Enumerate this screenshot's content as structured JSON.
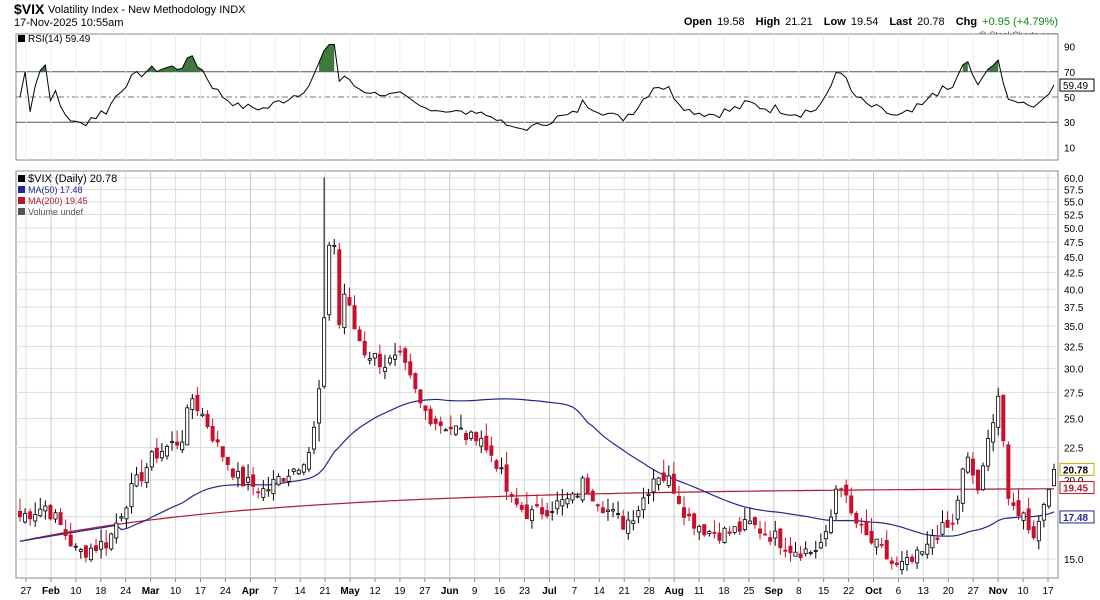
{
  "header": {
    "symbol": "$VIX",
    "name": "Volatility Index - New Methodology  INDX",
    "datetime": "17-Nov-2025 10:55am",
    "open_label": "Open",
    "open": "19.58",
    "high_label": "High",
    "high": "21.21",
    "low_label": "Low",
    "low": "19.54",
    "last_label": "Last",
    "last": "20.78",
    "chg_label": "Chg",
    "chg": "+0.95 (+4.79%)",
    "credit": "@ StockCharts.com"
  },
  "rsi_panel": {
    "legend": "RSI(14) 59.49",
    "ticks": [
      "90",
      "70",
      "50",
      "30",
      "10"
    ],
    "current": "59.49"
  },
  "price_panel": {
    "legend": [
      {
        "text": "$VIX (Daily) 20.78",
        "color": "#000000"
      },
      {
        "text": "MA(50) 17.48",
        "color": "#1f2a8c"
      },
      {
        "text": "MA(200) 19.45",
        "color": "#b0182b"
      },
      {
        "text": "Volume undef",
        "color": "#555555"
      }
    ],
    "ticks": [
      "60.0",
      "57.5",
      "55.0",
      "52.5",
      "50.0",
      "47.5",
      "45.0",
      "42.5",
      "40.0",
      "37.5",
      "35.0",
      "32.5",
      "30.0",
      "27.5",
      "25.0",
      "22.5",
      "20.0",
      "17.5",
      "15.0"
    ],
    "last_box": "20.78",
    "ma200_box": "19.45",
    "ma50_box": "17.48"
  },
  "x_ticks": [
    "27",
    "Feb",
    "10",
    "18",
    "24",
    "Mar",
    "10",
    "17",
    "24",
    "Apr",
    "7",
    "14",
    "21",
    "May",
    "12",
    "19",
    "27",
    "Jun",
    "9",
    "16",
    "23",
    "Jul",
    "7",
    "14",
    "21",
    "28",
    "Aug",
    "11",
    "18",
    "25",
    "Sep",
    "8",
    "15",
    "22",
    "Oct",
    "6",
    "13",
    "20",
    "27",
    "Nov",
    "10",
    "17"
  ],
  "colors": {
    "up": "#ffffff",
    "down": "#c8102e",
    "ma50": "#1f2a8c",
    "ma200": "#b0182b",
    "grid": "#dddddd",
    "rsi_fill": "#3d7a3d"
  },
  "chart_data": {
    "type": "candlestick",
    "title": "$VIX Volatility Index - New Methodology INDX",
    "x_range": [
      "27-Jan-2025",
      "17-Nov-2025"
    ],
    "y_scale": "log",
    "ylim": [
      14,
      62
    ],
    "ohlc_approx": [
      {
        "x": "Jan 27",
        "c": 17.9
      },
      {
        "x": "Feb 3",
        "c": 18.6
      },
      {
        "x": "Feb 10",
        "c": 15.4
      },
      {
        "x": "Feb 18",
        "c": 15.6
      },
      {
        "x": "Feb 24",
        "c": 19.6
      },
      {
        "x": "Mar 3",
        "c": 23.5
      },
      {
        "x": "Mar 10",
        "c": 27.9
      },
      {
        "x": "Mar 17",
        "c": 19.3
      },
      {
        "x": "Mar 24",
        "c": 21.6
      },
      {
        "x": "Mar 31",
        "c": 21.8
      },
      {
        "x": "Apr 4",
        "c": 45.3
      },
      {
        "x": "Apr 8",
        "c": 52.3
      },
      {
        "x": "Apr 9",
        "c": 33.6
      },
      {
        "x": "Apr 14",
        "c": 30.1
      },
      {
        "x": "Apr 21",
        "c": 33.8
      },
      {
        "x": "Apr 28",
        "c": 24.7
      },
      {
        "x": "May 5",
        "c": 23.5
      },
      {
        "x": "May 12",
        "c": 17.2
      },
      {
        "x": "May 19",
        "c": 18.1
      },
      {
        "x": "May 27",
        "c": 19.6
      },
      {
        "x": "Jun 2",
        "c": 17.7
      },
      {
        "x": "Jun 9",
        "c": 16.9
      },
      {
        "x": "Jun 16",
        "c": 20.6
      },
      {
        "x": "Jun 23",
        "c": 19.5
      },
      {
        "x": "Jul 7",
        "c": 16.6
      },
      {
        "x": "Jul 14",
        "c": 16.4
      },
      {
        "x": "Jul 21",
        "c": 15.4
      },
      {
        "x": "Jul 28",
        "c": 15.9
      },
      {
        "x": "Aug 1",
        "c": 20.4
      },
      {
        "x": "Aug 11",
        "c": 15.1
      },
      {
        "x": "Aug 18",
        "c": 14.2
      },
      {
        "x": "Aug 25",
        "c": 15.4
      },
      {
        "x": "Sep 8",
        "c": 15.3
      },
      {
        "x": "Sep 15",
        "c": 15.9
      },
      {
        "x": "Sep 22",
        "c": 16.4
      },
      {
        "x": "Oct 6",
        "c": 16.4
      },
      {
        "x": "Oct 10",
        "c": 21.7
      },
      {
        "x": "Oct 16",
        "c": 25.3
      },
      {
        "x": "Oct 20",
        "c": 18.2
      },
      {
        "x": "Oct 27",
        "c": 16.9
      },
      {
        "x": "Nov 4",
        "c": 19.0
      },
      {
        "x": "Nov 10",
        "c": 17.6
      },
      {
        "x": "Nov 14",
        "c": 19.8
      },
      {
        "x": "Nov 17",
        "c": 20.78
      }
    ],
    "series": [
      {
        "name": "MA(50)",
        "last": 17.48
      },
      {
        "name": "MA(200)",
        "last": 19.45
      },
      {
        "name": "RSI(14)",
        "last": 59.49
      }
    ]
  }
}
